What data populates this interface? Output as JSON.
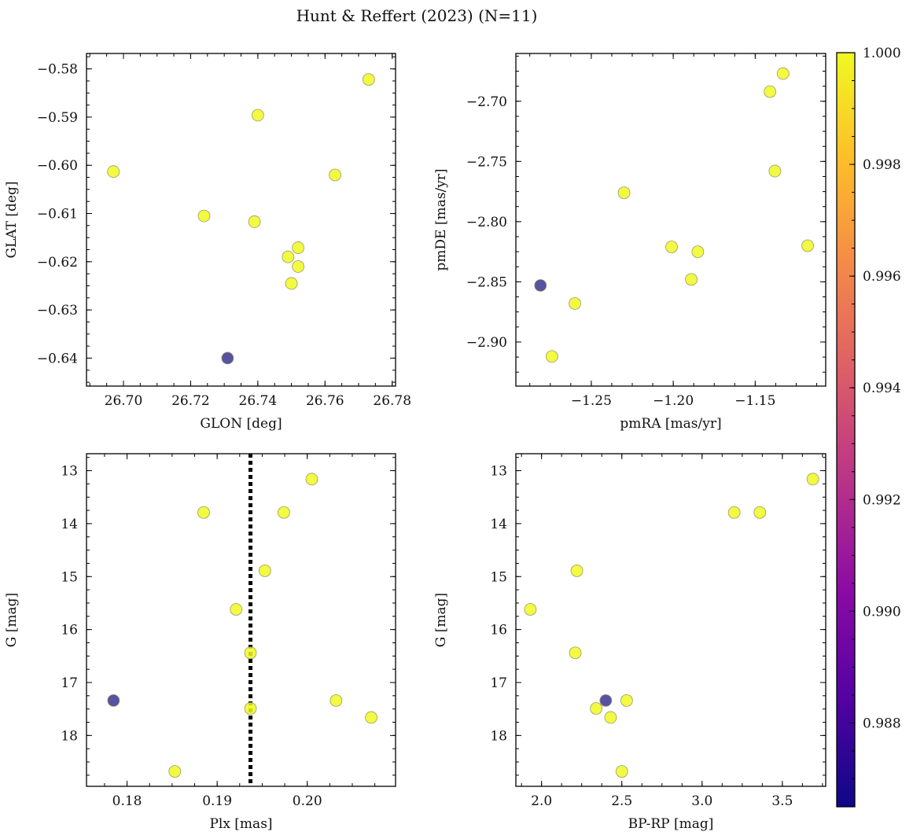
{
  "figure": {
    "title": "Hunt & Reffert (2023) (N=11)"
  },
  "colors": {
    "member_high": "#f0f921",
    "member_low": "#3b3490",
    "edge": "#9a9a6a",
    "refline": "#000000",
    "colormap": [
      "#0d0887",
      "#5302a3",
      "#8b0aa5",
      "#b83289",
      "#db5c68",
      "#f48849",
      "#febd2a",
      "#f0f921"
    ]
  },
  "colorbar": {
    "range": [
      0.9865,
      1.0
    ],
    "ticks": [
      0.988,
      0.99,
      0.992,
      0.994,
      0.996,
      0.998,
      1.0
    ],
    "tick_labels": [
      "0.988",
      "0.990",
      "0.992",
      "0.994",
      "0.996",
      "0.998",
      "1.000"
    ]
  },
  "chart_data": [
    {
      "type": "scatter",
      "title": "",
      "xlabel": "GLON [deg]",
      "ylabel": "GLAT [deg]",
      "xlim": [
        26.689,
        26.781
      ],
      "ylim": [
        -0.6458,
        -0.5768
      ],
      "y_inverted": false,
      "xticks": [
        26.7,
        26.72,
        26.74,
        26.76,
        26.78
      ],
      "xtick_labels": [
        "26.70",
        "26.72",
        "26.74",
        "26.76",
        "26.78"
      ],
      "yticks": [
        -0.58,
        -0.59,
        -0.6,
        -0.61,
        -0.62,
        -0.63,
        -0.64
      ],
      "ytick_labels": [
        "−0.58",
        "−0.59",
        "−0.60",
        "−0.61",
        "−0.62",
        "−0.63",
        "−0.64"
      ],
      "points": [
        {
          "x": 26.697,
          "y": -0.6013,
          "c": 1.0
        },
        {
          "x": 26.724,
          "y": -0.6105,
          "c": 1.0
        },
        {
          "x": 26.731,
          "y": -0.64,
          "c": 0.9865
        },
        {
          "x": 26.739,
          "y": -0.6117,
          "c": 1.0
        },
        {
          "x": 26.74,
          "y": -0.5896,
          "c": 1.0
        },
        {
          "x": 26.749,
          "y": -0.619,
          "c": 1.0
        },
        {
          "x": 26.75,
          "y": -0.6245,
          "c": 1.0
        },
        {
          "x": 26.752,
          "y": -0.621,
          "c": 1.0
        },
        {
          "x": 26.752,
          "y": -0.6171,
          "c": 1.0
        },
        {
          "x": 26.763,
          "y": -0.602,
          "c": 1.0
        },
        {
          "x": 26.773,
          "y": -0.5822,
          "c": 1.0
        }
      ]
    },
    {
      "type": "scatter",
      "title": "",
      "xlabel": "pmRA [mas/yr]",
      "ylabel": "pmDE [mas/yr]",
      "xlim": [
        -1.296,
        -1.107
      ],
      "ylim": [
        -2.9366,
        -2.6603
      ],
      "y_inverted": false,
      "xticks": [
        -1.25,
        -1.2,
        -1.15
      ],
      "xtick_labels": [
        "−1.25",
        "−1.20",
        "−1.15"
      ],
      "yticks": [
        -2.7,
        -2.75,
        -2.8,
        -2.85,
        -2.9
      ],
      "ytick_labels": [
        "−2.70",
        "−2.75",
        "−2.80",
        "−2.85",
        "−2.90"
      ],
      "points": [
        {
          "x": -1.281,
          "y": -2.853,
          "c": 0.9865
        },
        {
          "x": -1.274,
          "y": -2.912,
          "c": 1.0
        },
        {
          "x": -1.26,
          "y": -2.868,
          "c": 1.0
        },
        {
          "x": -1.23,
          "y": -2.776,
          "c": 1.0
        },
        {
          "x": -1.201,
          "y": -2.821,
          "c": 1.0
        },
        {
          "x": -1.189,
          "y": -2.848,
          "c": 1.0
        },
        {
          "x": -1.185,
          "y": -2.825,
          "c": 1.0
        },
        {
          "x": -1.141,
          "y": -2.692,
          "c": 1.0
        },
        {
          "x": -1.138,
          "y": -2.758,
          "c": 1.0
        },
        {
          "x": -1.133,
          "y": -2.677,
          "c": 1.0
        },
        {
          "x": -1.118,
          "y": -2.82,
          "c": 1.0
        }
      ]
    },
    {
      "type": "scatter",
      "title": "",
      "xlabel": "Plx [mas]",
      "ylabel": "G [mag]",
      "xlim": [
        0.1755,
        0.2098
      ],
      "ylim": [
        12.68,
        18.96
      ],
      "y_inverted": true,
      "vline": 0.1937,
      "xticks": [
        0.18,
        0.19,
        0.2
      ],
      "xtick_labels": [
        "0.18",
        "0.19",
        "0.20"
      ],
      "yticks": [
        13,
        14,
        15,
        16,
        17,
        18
      ],
      "ytick_labels": [
        "13",
        "14",
        "15",
        "16",
        "17",
        "18"
      ],
      "points": [
        {
          "x": 0.1785,
          "y": 17.34,
          "c": 0.9865
        },
        {
          "x": 0.1853,
          "y": 18.68,
          "c": 1.0
        },
        {
          "x": 0.1885,
          "y": 13.79,
          "c": 1.0
        },
        {
          "x": 0.1921,
          "y": 15.62,
          "c": 1.0
        },
        {
          "x": 0.1937,
          "y": 16.44,
          "c": 1.0
        },
        {
          "x": 0.1937,
          "y": 17.49,
          "c": 1.0
        },
        {
          "x": 0.1953,
          "y": 14.89,
          "c": 1.0
        },
        {
          "x": 0.1974,
          "y": 13.79,
          "c": 1.0
        },
        {
          "x": 0.2005,
          "y": 13.16,
          "c": 1.0
        },
        {
          "x": 0.2032,
          "y": 17.34,
          "c": 1.0
        },
        {
          "x": 0.2071,
          "y": 17.66,
          "c": 1.0
        }
      ]
    },
    {
      "type": "scatter",
      "title": "",
      "xlabel": "BP-RP [mag]",
      "ylabel": "G [mag]",
      "xlim": [
        1.84,
        3.77
      ],
      "ylim": [
        12.68,
        18.96
      ],
      "y_inverted": true,
      "xticks": [
        2.0,
        2.5,
        3.0,
        3.5
      ],
      "xtick_labels": [
        "2.0",
        "2.5",
        "3.0",
        "3.5"
      ],
      "yticks": [
        13,
        14,
        15,
        16,
        17,
        18
      ],
      "ytick_labels": [
        "13",
        "14",
        "15",
        "16",
        "17",
        "18"
      ],
      "points": [
        {
          "x": 1.93,
          "y": 15.62,
          "c": 1.0
        },
        {
          "x": 2.21,
          "y": 16.44,
          "c": 1.0
        },
        {
          "x": 2.22,
          "y": 14.89,
          "c": 1.0
        },
        {
          "x": 2.34,
          "y": 17.49,
          "c": 1.0
        },
        {
          "x": 2.4,
          "y": 17.34,
          "c": 0.9865
        },
        {
          "x": 2.43,
          "y": 17.66,
          "c": 1.0
        },
        {
          "x": 2.5,
          "y": 18.68,
          "c": 1.0
        },
        {
          "x": 2.53,
          "y": 17.34,
          "c": 1.0
        },
        {
          "x": 3.2,
          "y": 13.79,
          "c": 1.0
        },
        {
          "x": 3.36,
          "y": 13.79,
          "c": 1.0
        },
        {
          "x": 3.69,
          "y": 13.16,
          "c": 1.0
        }
      ]
    }
  ]
}
